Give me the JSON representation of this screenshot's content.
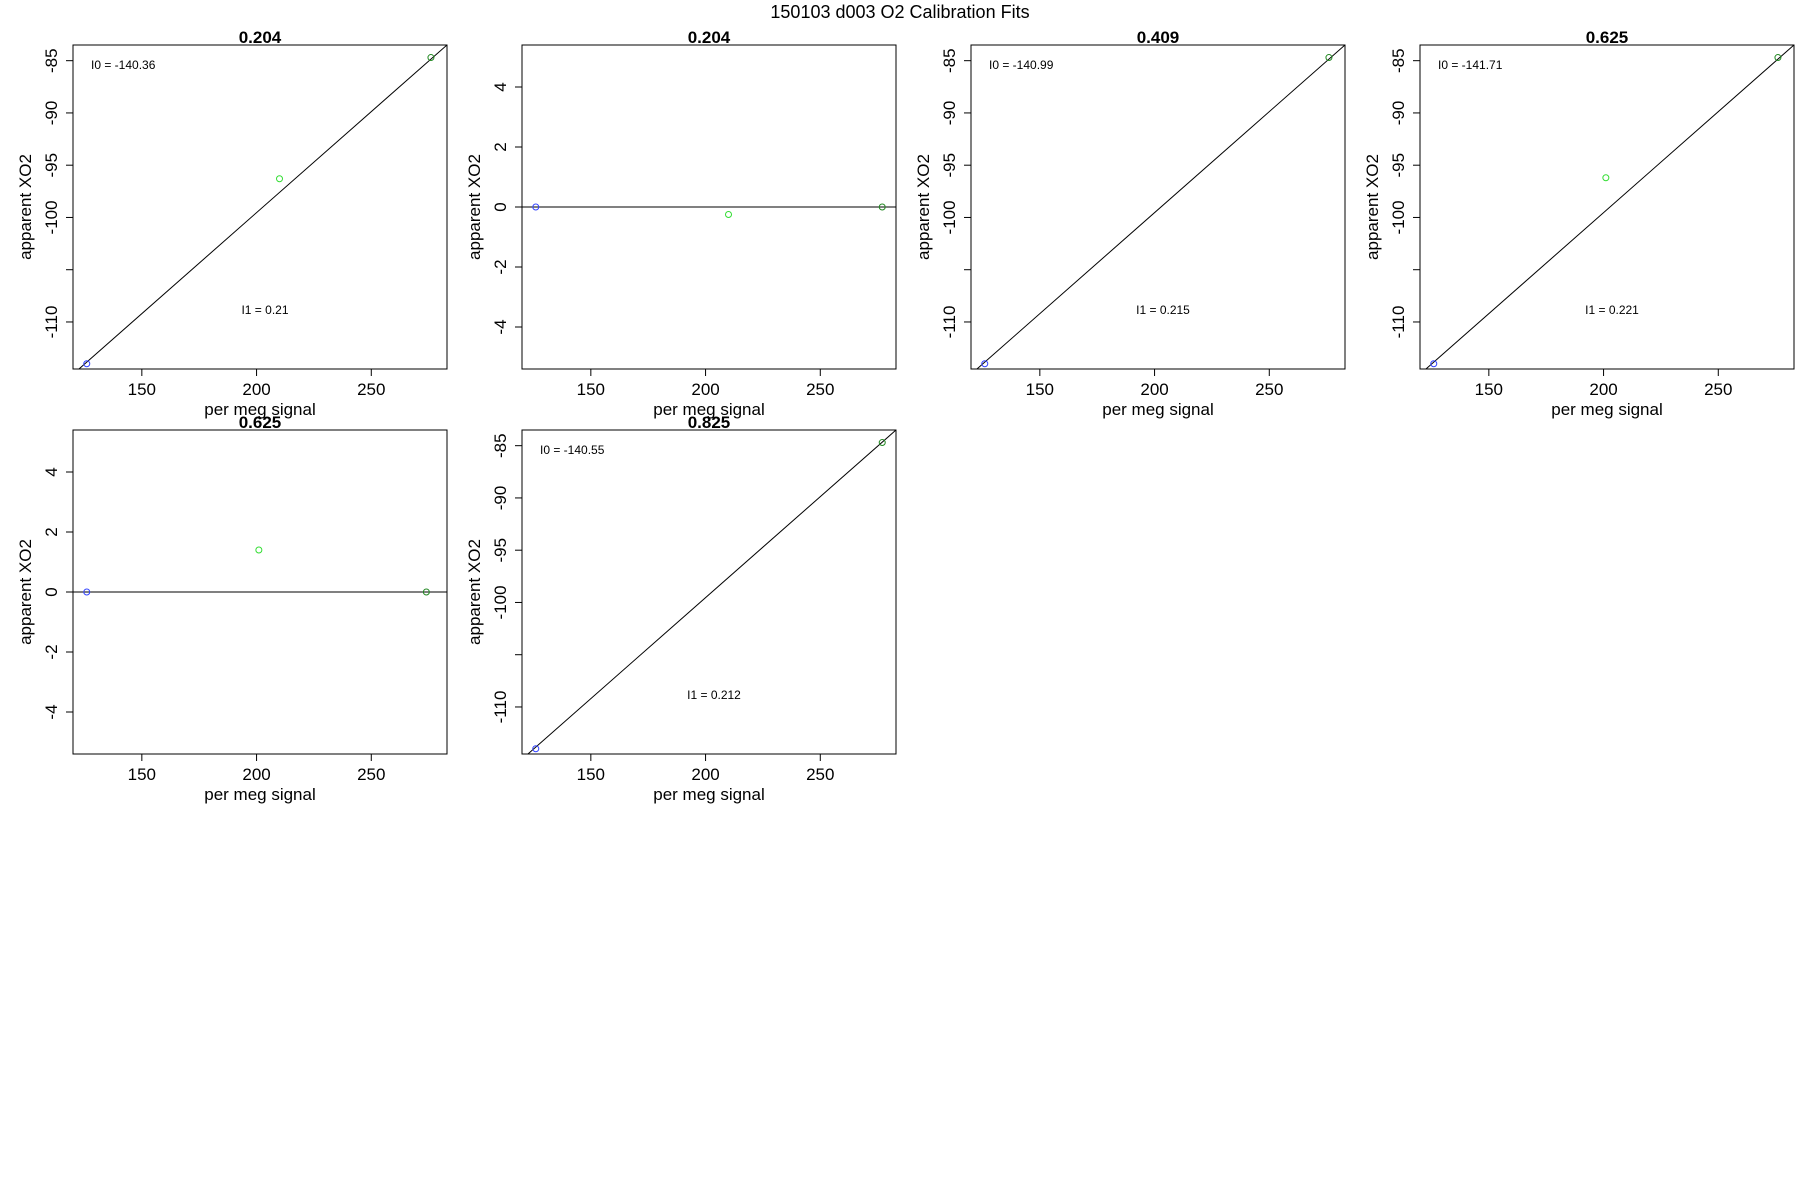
{
  "figure_title": "150103   d003   O2 Calibration Fits",
  "colors": {
    "blue": "#3344ff",
    "green": "#33dd33",
    "darkgreen": "#228822"
  },
  "chart_data": [
    {
      "type": "scatter",
      "title": "0.204",
      "xlabel": "per meg signal",
      "ylabel": "apparent XO2",
      "xlim": [
        120,
        283
      ],
      "ylim": [
        -114.5,
        -83.5
      ],
      "xticks": [
        150,
        200,
        250
      ],
      "yticks": [
        -85,
        -90,
        -95,
        -100,
        -105,
        -110
      ],
      "ytick_labels": [
        "-85",
        "-90",
        "-95",
        "-100",
        "",
        "-110"
      ],
      "points": [
        {
          "x": 126,
          "y": -114,
          "color": "blue"
        },
        {
          "x": 210,
          "y": -96.3,
          "color": "green"
        },
        {
          "x": 276,
          "y": -84.7,
          "color": "darkgreen"
        }
      ],
      "line": {
        "x": [
          120,
          283
        ],
        "y": [
          -115,
          -83.5
        ]
      },
      "annotations": [
        "I0 =  -140.36",
        "I1 =  0.21"
      ]
    },
    {
      "type": "scatter",
      "title": "0.204",
      "xlabel": "per meg signal",
      "ylabel": "apparent XO2",
      "xlim": [
        120,
        283
      ],
      "ylim": [
        -5.4,
        5.4
      ],
      "xticks": [
        150,
        200,
        250
      ],
      "yticks": [
        4,
        2,
        0,
        -2,
        -4
      ],
      "ytick_labels": [
        "4",
        "2",
        "0",
        "-2",
        "-4"
      ],
      "points": [
        {
          "x": 126,
          "y": 0,
          "color": "blue"
        },
        {
          "x": 210,
          "y": -0.25,
          "color": "green"
        },
        {
          "x": 277,
          "y": 0,
          "color": "darkgreen"
        }
      ],
      "line": {
        "x": [
          120,
          283
        ],
        "y": [
          0,
          0
        ]
      },
      "annotations": []
    },
    {
      "type": "scatter",
      "title": "0.409",
      "xlabel": "per meg signal",
      "ylabel": "apparent XO2",
      "xlim": [
        120,
        283
      ],
      "ylim": [
        -114.5,
        -83.5
      ],
      "xticks": [
        150,
        200,
        250
      ],
      "yticks": [
        -85,
        -90,
        -95,
        -100,
        -105,
        -110
      ],
      "ytick_labels": [
        "-85",
        "-90",
        "-95",
        "-100",
        "",
        "-110"
      ],
      "points": [
        {
          "x": 126,
          "y": -114,
          "color": "blue"
        },
        {
          "x": 276,
          "y": -84.7,
          "color": "darkgreen"
        }
      ],
      "line": {
        "x": [
          120,
          283
        ],
        "y": [
          -115,
          -83.5
        ]
      },
      "annotations": [
        "I0 =  -140.99",
        "I1 =  0.215"
      ]
    },
    {
      "type": "scatter",
      "title": "0.625",
      "xlabel": "per meg signal",
      "ylabel": "apparent XO2",
      "xlim": [
        120,
        283
      ],
      "ylim": [
        -114.5,
        -83.5
      ],
      "xticks": [
        150,
        200,
        250
      ],
      "yticks": [
        -85,
        -90,
        -95,
        -100,
        -105,
        -110
      ],
      "ytick_labels": [
        "-85",
        "-90",
        "-95",
        "-100",
        "",
        "-110"
      ],
      "points": [
        {
          "x": 126,
          "y": -114,
          "color": "blue"
        },
        {
          "x": 201,
          "y": -96.2,
          "color": "green"
        },
        {
          "x": 276,
          "y": -84.7,
          "color": "darkgreen"
        }
      ],
      "line": {
        "x": [
          120,
          283
        ],
        "y": [
          -115,
          -83.5
        ]
      },
      "annotations": [
        "I0 =  -141.71",
        "I1 =  0.221"
      ]
    },
    {
      "type": "scatter",
      "title": "0.625",
      "xlabel": "per meg signal",
      "ylabel": "apparent XO2",
      "xlim": [
        120,
        283
      ],
      "ylim": [
        -5.4,
        5.4
      ],
      "xticks": [
        150,
        200,
        250
      ],
      "yticks": [
        4,
        2,
        0,
        -2,
        -4
      ],
      "ytick_labels": [
        "4",
        "2",
        "0",
        "-2",
        "-4"
      ],
      "points": [
        {
          "x": 126,
          "y": 0,
          "color": "blue"
        },
        {
          "x": 201,
          "y": 1.4,
          "color": "green"
        },
        {
          "x": 274,
          "y": 0,
          "color": "darkgreen"
        }
      ],
      "line": {
        "x": [
          120,
          283
        ],
        "y": [
          0,
          0
        ]
      },
      "annotations": []
    },
    {
      "type": "scatter",
      "title": "0.825",
      "xlabel": "per meg signal",
      "ylabel": "apparent XO2",
      "xlim": [
        120,
        283
      ],
      "ylim": [
        -114.5,
        -83.5
      ],
      "xticks": [
        150,
        200,
        250
      ],
      "yticks": [
        -85,
        -90,
        -95,
        -100,
        -105,
        -110
      ],
      "ytick_labels": [
        "-85",
        "-90",
        "-95",
        "-100",
        "",
        "-110"
      ],
      "points": [
        {
          "x": 126,
          "y": -114,
          "color": "blue"
        },
        {
          "x": 277,
          "y": -84.7,
          "color": "darkgreen"
        }
      ],
      "line": {
        "x": [
          120,
          283
        ],
        "y": [
          -115,
          -83.5
        ]
      },
      "annotations": [
        "I0 =  -140.55",
        "I1 =  0.212"
      ]
    }
  ]
}
